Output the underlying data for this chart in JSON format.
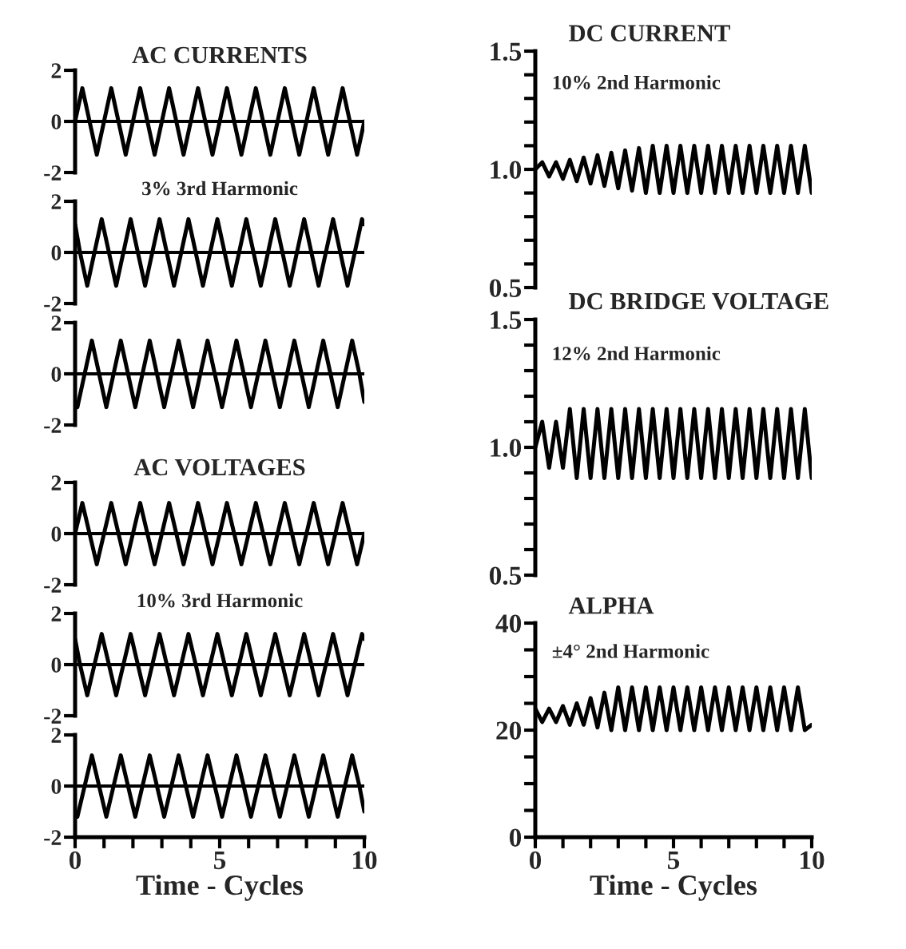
{
  "chart_data": [
    {
      "type": "line",
      "title": "AC CURRENTS",
      "xlim": [
        0,
        10
      ],
      "ylim": [
        -2,
        2
      ],
      "yticks": [
        -2,
        0,
        2
      ],
      "tick_labels": "y",
      "ref_lines": [
        {
          "axis": "y",
          "value": 0
        }
      ],
      "series": [
        {
          "color": "#000000",
          "x": [
            0,
            0.25,
            0.5,
            0.75,
            1,
            1.25,
            1.5,
            1.75,
            2,
            2.25,
            2.5,
            2.75,
            3,
            3.25,
            3.5,
            3.75,
            4,
            4.25,
            4.5,
            4.75,
            5,
            5.25,
            5.5,
            5.75,
            6,
            6.25,
            6.5,
            6.75,
            7,
            7.25,
            7.5,
            7.75,
            8,
            8.25,
            8.5,
            8.75,
            9,
            9.25,
            9.5,
            9.75,
            10
          ],
          "values": [
            0,
            1.3,
            0,
            -1.3,
            0,
            1.3,
            0,
            -1.3,
            0,
            1.3,
            0,
            -1.3,
            0,
            1.3,
            0,
            -1.3,
            0,
            1.3,
            0,
            -1.3,
            0,
            1.3,
            0,
            -1.3,
            0,
            1.3,
            0,
            -1.3,
            0,
            1.3,
            0,
            -1.3,
            0,
            1.3,
            0,
            -1.3,
            0,
            1.3,
            0,
            -1.3,
            0
          ]
        }
      ]
    },
    {
      "type": "line",
      "title": "3% 3rd Harmonic",
      "xlim": [
        0,
        10
      ],
      "ylim": [
        -2,
        2
      ],
      "yticks": [
        -2,
        0,
        2
      ],
      "tick_labels": "y",
      "ref_lines": [
        {
          "axis": "y",
          "value": 0
        }
      ],
      "series": [
        {
          "color": "#000000",
          "x": [
            0,
            0.17,
            0.42,
            0.67,
            0.92,
            1.17,
            1.42,
            1.67,
            1.92,
            2.17,
            2.42,
            2.67,
            2.92,
            3.17,
            3.42,
            3.67,
            3.92,
            4.17,
            4.42,
            4.67,
            4.92,
            5.17,
            5.42,
            5.67,
            5.92,
            6.17,
            6.42,
            6.67,
            6.92,
            7.17,
            7.42,
            7.67,
            7.92,
            8.17,
            8.42,
            8.67,
            8.92,
            9.17,
            9.42,
            9.67,
            9.92,
            10
          ],
          "values": [
            1.1,
            0,
            -1.3,
            0,
            1.3,
            0,
            -1.3,
            0,
            1.3,
            0,
            -1.3,
            0,
            1.3,
            0,
            -1.3,
            0,
            1.3,
            0,
            -1.3,
            0,
            1.3,
            0,
            -1.3,
            0,
            1.3,
            0,
            -1.3,
            0,
            1.3,
            0,
            -1.3,
            0,
            1.3,
            0,
            -1.3,
            0,
            1.3,
            0,
            -1.3,
            0,
            1.3,
            1.1
          ]
        }
      ]
    },
    {
      "type": "line",
      "xlim": [
        0,
        10
      ],
      "ylim": [
        -2,
        2
      ],
      "yticks": [
        -2,
        0,
        2
      ],
      "tick_labels": "y",
      "ref_lines": [
        {
          "axis": "y",
          "value": 0
        }
      ],
      "series": [
        {
          "color": "#000000",
          "x": [
            0,
            0.08,
            0.33,
            0.58,
            0.83,
            1.08,
            1.33,
            1.58,
            1.83,
            2.08,
            2.33,
            2.58,
            2.83,
            3.08,
            3.33,
            3.58,
            3.83,
            4.08,
            4.33,
            4.58,
            4.83,
            5.08,
            5.33,
            5.58,
            5.83,
            6.08,
            6.33,
            6.58,
            6.83,
            7.08,
            7.33,
            7.58,
            7.83,
            8.08,
            8.33,
            8.58,
            8.83,
            9.08,
            9.33,
            9.58,
            9.83,
            10
          ],
          "values": [
            -1.1,
            -1.3,
            0,
            1.3,
            0,
            -1.3,
            0,
            1.3,
            0,
            -1.3,
            0,
            1.3,
            0,
            -1.3,
            0,
            1.3,
            0,
            -1.3,
            0,
            1.3,
            0,
            -1.3,
            0,
            1.3,
            0,
            -1.3,
            0,
            1.3,
            0,
            -1.3,
            0,
            1.3,
            0,
            -1.3,
            0,
            1.3,
            0,
            -1.3,
            0,
            1.3,
            0,
            -1.1
          ]
        }
      ]
    },
    {
      "type": "line",
      "title": "AC VOLTAGES",
      "xlim": [
        0,
        10
      ],
      "ylim": [
        -2,
        2
      ],
      "yticks": [
        -2,
        0,
        2
      ],
      "tick_labels": "y",
      "ref_lines": [
        {
          "axis": "y",
          "value": 0
        }
      ],
      "series": [
        {
          "color": "#000000",
          "x": [
            0,
            0.25,
            0.5,
            0.75,
            1,
            1.25,
            1.5,
            1.75,
            2,
            2.25,
            2.5,
            2.75,
            3,
            3.25,
            3.5,
            3.75,
            4,
            4.25,
            4.5,
            4.75,
            5,
            5.25,
            5.5,
            5.75,
            6,
            6.25,
            6.5,
            6.75,
            7,
            7.25,
            7.5,
            7.75,
            8,
            8.25,
            8.5,
            8.75,
            9,
            9.25,
            9.5,
            9.75,
            10
          ],
          "values": [
            0,
            1.2,
            0,
            -1.2,
            0,
            1.2,
            0,
            -1.2,
            0,
            1.2,
            0,
            -1.2,
            0,
            1.2,
            0,
            -1.2,
            0,
            1.2,
            0,
            -1.2,
            0,
            1.2,
            0,
            -1.2,
            0,
            1.2,
            0,
            -1.2,
            0,
            1.2,
            0,
            -1.2,
            0,
            1.2,
            0,
            -1.2,
            0,
            1.2,
            0,
            -1.2,
            0
          ]
        }
      ]
    },
    {
      "type": "line",
      "title": "10% 3rd Harmonic",
      "xlim": [
        0,
        10
      ],
      "ylim": [
        -2,
        2
      ],
      "yticks": [
        -2,
        0,
        2
      ],
      "tick_labels": "y",
      "ref_lines": [
        {
          "axis": "y",
          "value": 0
        }
      ],
      "series": [
        {
          "color": "#000000",
          "x": [
            0,
            0.17,
            0.42,
            0.67,
            0.92,
            1.17,
            1.42,
            1.67,
            1.92,
            2.17,
            2.42,
            2.67,
            2.92,
            3.17,
            3.42,
            3.67,
            3.92,
            4.17,
            4.42,
            4.67,
            4.92,
            5.17,
            5.42,
            5.67,
            5.92,
            6.17,
            6.42,
            6.67,
            6.92,
            7.17,
            7.42,
            7.67,
            7.92,
            8.17,
            8.42,
            8.67,
            8.92,
            9.17,
            9.42,
            9.67,
            9.92,
            10
          ],
          "values": [
            1.0,
            0,
            -1.2,
            0,
            1.2,
            0,
            -1.2,
            0,
            1.2,
            0,
            -1.2,
            0,
            1.2,
            0,
            -1.2,
            0,
            1.2,
            0,
            -1.2,
            0,
            1.2,
            0,
            -1.2,
            0,
            1.2,
            0,
            -1.2,
            0,
            1.2,
            0,
            -1.2,
            0,
            1.2,
            0,
            -1.2,
            0,
            1.2,
            0,
            -1.2,
            0,
            1.2,
            1.0
          ]
        }
      ]
    },
    {
      "type": "line",
      "xlabel": "Time - Cycles",
      "xlim": [
        0,
        10
      ],
      "ylim": [
        -2,
        2
      ],
      "yticks": [
        -2,
        0,
        2
      ],
      "xticks": [
        0,
        {
          "value": 1,
          "label": null
        },
        {
          "value": 2,
          "label": null
        },
        {
          "value": 3,
          "label": null
        },
        {
          "value": 4,
          "label": null
        },
        5,
        {
          "value": 6,
          "label": null
        },
        {
          "value": 7,
          "label": null
        },
        {
          "value": 8,
          "label": null
        },
        {
          "value": 9,
          "label": null
        },
        10
      ],
      "ref_lines": [
        {
          "axis": "y",
          "value": 0
        }
      ],
      "series": [
        {
          "color": "#000000",
          "x": [
            0,
            0.08,
            0.33,
            0.58,
            0.83,
            1.08,
            1.33,
            1.58,
            1.83,
            2.08,
            2.33,
            2.58,
            2.83,
            3.08,
            3.33,
            3.58,
            3.83,
            4.08,
            4.33,
            4.58,
            4.83,
            5.08,
            5.33,
            5.58,
            5.83,
            6.08,
            6.33,
            6.58,
            6.83,
            7.08,
            7.33,
            7.58,
            7.83,
            8.08,
            8.33,
            8.58,
            8.83,
            9.08,
            9.33,
            9.58,
            9.83,
            10
          ],
          "values": [
            -1.0,
            -1.2,
            0,
            1.2,
            0,
            -1.2,
            0,
            1.2,
            0,
            -1.2,
            0,
            1.2,
            0,
            -1.2,
            0,
            1.2,
            0,
            -1.2,
            0,
            1.2,
            0,
            -1.2,
            0,
            1.2,
            0,
            -1.2,
            0,
            1.2,
            0,
            -1.2,
            0,
            1.2,
            0,
            -1.2,
            0,
            1.2,
            0,
            -1.2,
            0,
            1.2,
            0,
            -1.0
          ]
        }
      ]
    },
    {
      "type": "line",
      "title": "DC CURRENT",
      "subtitle": "10% 2nd Harmonic",
      "xlim": [
        0,
        10
      ],
      "ylim": [
        0.5,
        1.5
      ],
      "yticks": [
        {
          "value": 0.5,
          "label": "0.5"
        },
        {
          "value": 0.6,
          "label": null
        },
        {
          "value": 0.7,
          "label": null
        },
        {
          "value": 0.8,
          "label": null
        },
        {
          "value": 0.9,
          "label": null
        },
        {
          "value": 1.0,
          "label": "1.0"
        },
        {
          "value": 1.1,
          "label": null
        },
        {
          "value": 1.2,
          "label": null
        },
        {
          "value": 1.3,
          "label": null
        },
        {
          "value": 1.4,
          "label": null
        },
        {
          "value": 1.5,
          "label": "1.5"
        }
      ],
      "tick_labels": "y",
      "series": [
        {
          "color": "#000000",
          "x": [
            0,
            0.25,
            0.5,
            0.75,
            1,
            1.25,
            1.5,
            1.75,
            2,
            2.25,
            2.5,
            2.75,
            3,
            3.25,
            3.5,
            3.75,
            4,
            4.25,
            4.5,
            4.75,
            5,
            5.25,
            5.5,
            5.75,
            6,
            6.25,
            6.5,
            6.75,
            7,
            7.25,
            7.5,
            7.75,
            8,
            8.25,
            8.5,
            8.75,
            9,
            9.25,
            9.5,
            9.75,
            10
          ],
          "values": [
            1.0,
            1.03,
            0.97,
            1.03,
            0.96,
            1.04,
            0.95,
            1.05,
            0.94,
            1.06,
            0.93,
            1.07,
            0.92,
            1.08,
            0.91,
            1.09,
            0.9,
            1.1,
            0.9,
            1.1,
            0.9,
            1.1,
            0.9,
            1.1,
            0.9,
            1.1,
            0.9,
            1.1,
            0.9,
            1.1,
            0.9,
            1.1,
            0.9,
            1.1,
            0.9,
            1.1,
            0.9,
            1.1,
            0.9,
            1.1,
            0.9
          ]
        }
      ]
    },
    {
      "type": "line",
      "title": "DC BRIDGE VOLTAGE",
      "subtitle": "12% 2nd Harmonic",
      "xlim": [
        0,
        10
      ],
      "ylim": [
        0.5,
        1.5
      ],
      "yticks": [
        {
          "value": 0.5,
          "label": "0.5"
        },
        {
          "value": 0.6,
          "label": null
        },
        {
          "value": 0.7,
          "label": null
        },
        {
          "value": 0.8,
          "label": null
        },
        {
          "value": 0.9,
          "label": null
        },
        {
          "value": 1.0,
          "label": "1.0"
        },
        {
          "value": 1.1,
          "label": null
        },
        {
          "value": 1.2,
          "label": null
        },
        {
          "value": 1.3,
          "label": null
        },
        {
          "value": 1.4,
          "label": null
        },
        {
          "value": 1.5,
          "label": "1.5"
        }
      ],
      "tick_labels": "y",
      "series": [
        {
          "color": "#000000",
          "x": [
            0,
            0.25,
            0.5,
            0.75,
            1,
            1.25,
            1.5,
            1.75,
            2,
            2.25,
            2.5,
            2.75,
            3,
            3.25,
            3.5,
            3.75,
            4,
            4.25,
            4.5,
            4.75,
            5,
            5.25,
            5.5,
            5.75,
            6,
            6.25,
            6.5,
            6.75,
            7,
            7.25,
            7.5,
            7.75,
            8,
            8.25,
            8.5,
            8.75,
            9,
            9.25,
            9.5,
            9.75,
            10
          ],
          "values": [
            1.0,
            1.1,
            0.92,
            1.1,
            0.92,
            1.15,
            0.88,
            1.15,
            0.88,
            1.15,
            0.88,
            1.15,
            0.88,
            1.15,
            0.88,
            1.15,
            0.88,
            1.15,
            0.88,
            1.15,
            0.88,
            1.15,
            0.88,
            1.15,
            0.88,
            1.15,
            0.88,
            1.15,
            0.88,
            1.15,
            0.88,
            1.15,
            0.88,
            1.15,
            0.88,
            1.15,
            0.88,
            1.15,
            0.88,
            1.15,
            0.88
          ]
        }
      ]
    },
    {
      "type": "line",
      "title": "ALPHA",
      "subtitle": "±4° 2nd Harmonic",
      "xlabel": "Time - Cycles",
      "xlim": [
        0,
        10
      ],
      "ylim": [
        0,
        40
      ],
      "yticks": [
        0,
        {
          "value": 5,
          "label": null
        },
        {
          "value": 10,
          "label": null
        },
        {
          "value": 15,
          "label": null
        },
        20,
        {
          "value": 25,
          "label": null
        },
        {
          "value": 30,
          "label": null
        },
        {
          "value": 35,
          "label": null
        },
        40
      ],
      "xticks": [
        0,
        {
          "value": 1,
          "label": null
        },
        {
          "value": 2,
          "label": null
        },
        {
          "value": 3,
          "label": null
        },
        {
          "value": 4,
          "label": null
        },
        5,
        {
          "value": 6,
          "label": null
        },
        {
          "value": 7,
          "label": null
        },
        {
          "value": 8,
          "label": null
        },
        {
          "value": 9,
          "label": null
        },
        10
      ],
      "series": [
        {
          "color": "#000000",
          "x": [
            0,
            0.25,
            0.5,
            0.75,
            1,
            1.25,
            1.5,
            1.75,
            2,
            2.25,
            2.5,
            2.75,
            3,
            3.25,
            3.5,
            3.75,
            4,
            4.25,
            4.5,
            4.75,
            5,
            5.25,
            5.5,
            5.75,
            6,
            6.25,
            6.5,
            6.75,
            7,
            7.25,
            7.5,
            7.75,
            8,
            8.25,
            8.5,
            8.75,
            9,
            9.25,
            9.5,
            9.75,
            10
          ],
          "values": [
            24,
            21.5,
            24,
            21.5,
            24.5,
            21,
            25,
            21,
            26,
            20.5,
            27,
            20,
            28,
            20,
            28,
            20,
            28,
            20,
            28,
            20,
            28,
            20,
            28,
            20,
            28,
            20,
            28,
            20,
            28,
            20,
            28,
            20,
            28,
            20,
            28,
            20,
            28,
            20,
            28,
            20,
            21
          ]
        }
      ]
    }
  ]
}
